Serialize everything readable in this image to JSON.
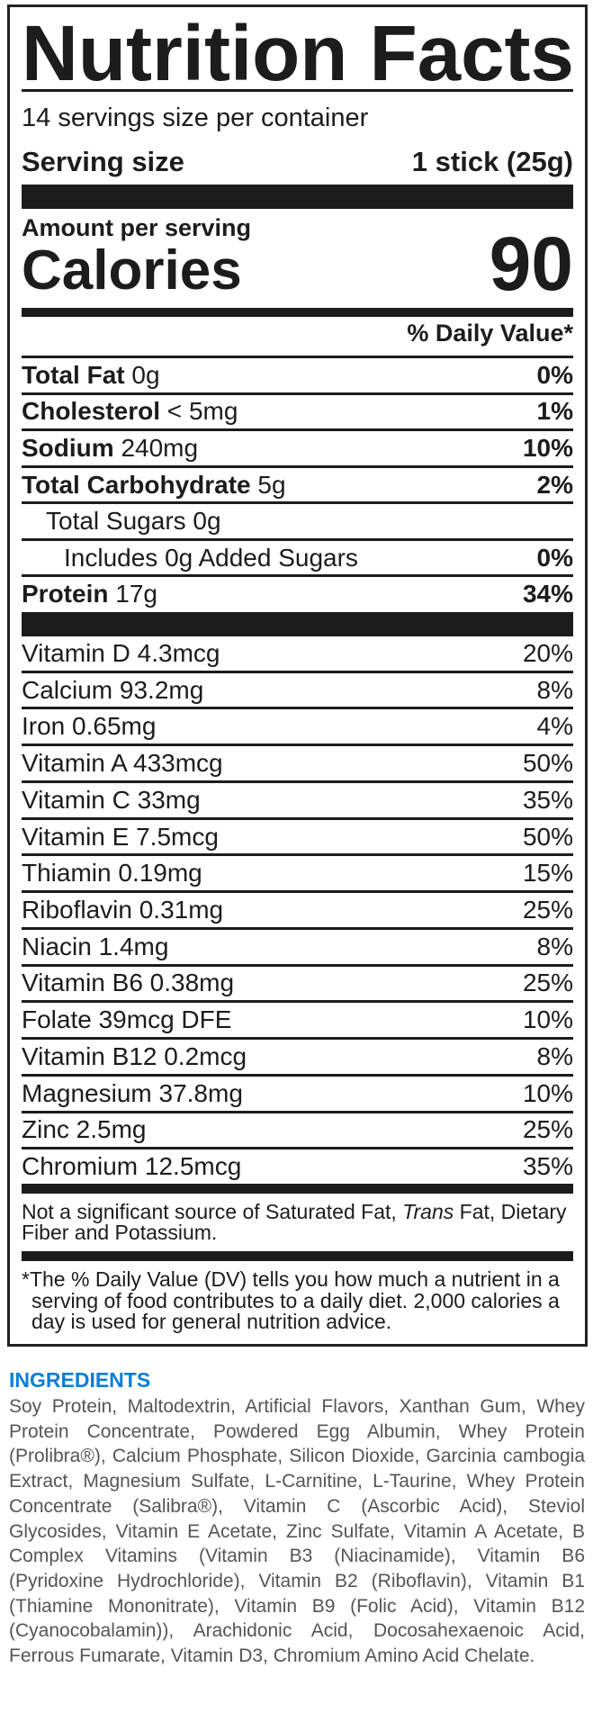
{
  "label": {
    "title": "Nutrition Facts",
    "servings_per_container": "14 servings size per container",
    "serving_size_label": "Serving size",
    "serving_size_value": "1 stick (25g)",
    "amount_per_serving": "Amount per serving",
    "calories_label": "Calories",
    "calories_value": "90",
    "daily_value_header": "% Daily Value*",
    "nutrients": [
      {
        "name": "Total Fat",
        "amount": " 0g",
        "dv": "0%"
      },
      {
        "name": "Cholesterol",
        "amount": " < 5mg",
        "dv": "1%"
      },
      {
        "name": "Sodium",
        "amount": " 240mg",
        "dv": "10%"
      },
      {
        "name": "Total Carbohydrate",
        "amount": " 5g",
        "dv": "2%"
      },
      {
        "name": "",
        "amount": "Total Sugars 0g",
        "dv": ""
      },
      {
        "name": "",
        "amount": "Includes 0g Added Sugars",
        "dv": "0%"
      },
      {
        "name": "Protein",
        "amount": " 17g",
        "dv": "34%"
      }
    ],
    "vitamins": [
      {
        "label": "Vitamin D 4.3mcg",
        "dv": "20%"
      },
      {
        "label": "Calcium 93.2mg",
        "dv": "8%"
      },
      {
        "label": "Iron 0.65mg",
        "dv": "4%"
      },
      {
        "label": "Vitamin A 433mcg",
        "dv": "50%"
      },
      {
        "label": "Vitamin C 33mg",
        "dv": "35%"
      },
      {
        "label": "Vitamin E 7.5mcg",
        "dv": "50%"
      },
      {
        "label": "Thiamin 0.19mg",
        "dv": "15%"
      },
      {
        "label": "Riboflavin 0.31mg",
        "dv": "25%"
      },
      {
        "label": "Niacin 1.4mg",
        "dv": "8%"
      },
      {
        "label": "Vitamin B6 0.38mg",
        "dv": "25%"
      },
      {
        "label": "Folate 39mcg DFE",
        "dv": "10%"
      },
      {
        "label": "Vitamin B12 0.2mcg",
        "dv": "8%"
      },
      {
        "label": "Magnesium 37.8mg",
        "dv": "10%"
      },
      {
        "label": "Zinc 2.5mg",
        "dv": "25%"
      },
      {
        "label": "Chromium 12.5mcg",
        "dv": "35%"
      }
    ],
    "not_significant_pre": "Not a significant source of Saturated Fat, ",
    "not_significant_italic": "Trans",
    "not_significant_post": " Fat, Dietary Fiber and Potassium.",
    "footnote": "*The % Daily Value (DV) tells you how much a nutrient in a serving of food contributes to a daily diet. 2,000 calories a day is used for general nutrition advice."
  },
  "ingredients": {
    "heading": "INGREDIENTS",
    "heading_color": "#0a7fd6",
    "text": "Soy Protein, Maltodextrin, Artificial Flavors, Xanthan Gum, Whey Protein Concentrate, Powdered Egg Albumin, Whey Protein (Prolibra®), Calcium Phosphate, Silicon Dioxide, Garcinia cambogia Extract, Magnesium Sulfate, L-Carnitine, L-Taurine, Whey Protein Concentrate (Salibra®), Vitamin C (Ascorbic Acid), Steviol Glycosides, Vitamin E Acetate, Zinc Sulfate, Vitamin A Acetate, B Complex Vitamins (Vitamin B3 (Niacinamide), Vitamin B6 (Pyridoxine Hydrochloride), Vitamin B2 (Riboflavin), Vitamin B1 (Thiamine Mononitrate), Vitamin B9 (Folic Acid), Vitamin B12 (Cyanocobalamin)), Arachidonic Acid, Docosahexaenoic Acid, Ferrous Fumarate, Vitamin D3, Chromium Amino Acid Chelate."
  }
}
